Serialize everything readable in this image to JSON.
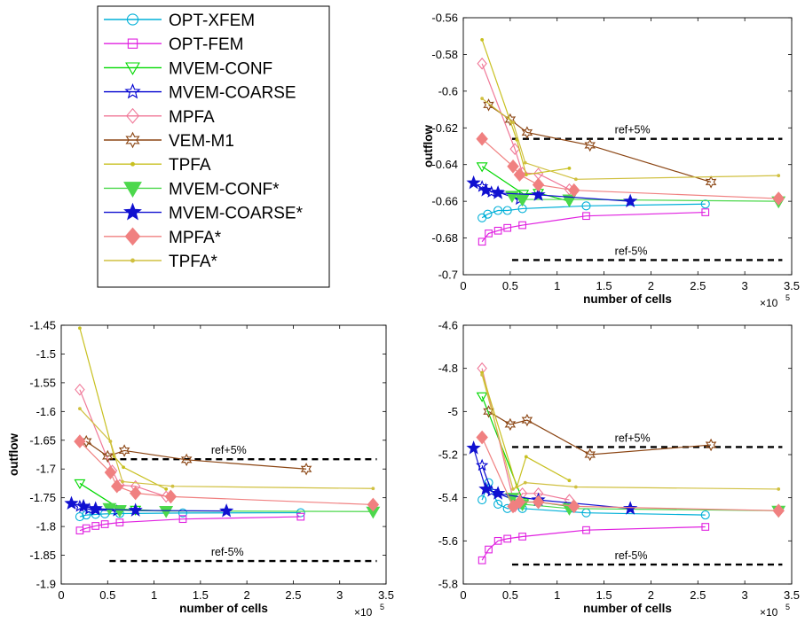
{
  "styles": {
    "OPT-XFEM": {
      "color": "#00b0d8",
      "marker": "circle",
      "dashed": false
    },
    "OPT-FEM": {
      "color": "#e020e0",
      "marker": "square",
      "dashed": false
    },
    "MVEM-CONF": {
      "color": "#00d800",
      "marker": "triangle-down",
      "dashed": false
    },
    "MVEM-COARSE": {
      "color": "#0000d0",
      "marker": "star5",
      "dashed": false
    },
    "MPFA": {
      "color": "#f07898",
      "marker": "diamond",
      "dashed": false
    },
    "VEM-M1": {
      "color": "#8b4513",
      "marker": "star6",
      "dashed": false
    },
    "TPFA": {
      "color": "#c8c020",
      "marker": "dot",
      "dashed": false
    },
    "MVEM-CONF*": {
      "color": "#4cd84c",
      "marker": "triangle-down-filled",
      "dashed": false
    },
    "MVEM-COARSE*": {
      "color": "#1010d0",
      "marker": "star5-filled",
      "dashed": false
    },
    "MPFA*": {
      "color": "#f08080",
      "marker": "diamond-filled",
      "dashed": false
    },
    "TPFA*": {
      "color": "#d0c040",
      "marker": "dot",
      "dashed": false
    }
  },
  "legend": {
    "placement": "top-left",
    "entries": [
      "OPT-XFEM",
      "OPT-FEM",
      "MVEM-CONF",
      "MVEM-COARSE",
      "MPFA",
      "VEM-M1",
      "TPFA",
      "MVEM-CONF*",
      "MVEM-COARSE*",
      "MPFA*",
      "TPFA*"
    ]
  },
  "chart_data": [
    {
      "type": "line",
      "xlabel": "number of cells",
      "ylabel": "outflow",
      "x_exponent_label": "×10",
      "x_exponent": "5",
      "xlim": [
        0,
        350000
      ],
      "ylim": [
        -0.7,
        -0.56
      ],
      "xticks": [
        0,
        50000,
        100000,
        150000,
        200000,
        250000,
        300000,
        350000
      ],
      "xticklabels": [
        "0",
        "0.5",
        "1",
        "1.5",
        "2",
        "2.5",
        "3",
        "3.5"
      ],
      "yticks": [
        -0.7,
        -0.68,
        -0.66,
        -0.64,
        -0.62,
        -0.6,
        -0.58,
        -0.56
      ],
      "yticklabels": [
        "-0.7",
        "-0.68",
        "-0.66",
        "-0.64",
        "-0.62",
        "-0.6",
        "-0.58",
        "-0.56"
      ],
      "reference_lines": [
        {
          "label": "ref+5%",
          "y": -0.626,
          "x": [
            52000,
            340000
          ]
        },
        {
          "label": "ref-5%",
          "y": -0.692,
          "x": [
            52000,
            340000
          ]
        }
      ],
      "series": [
        {
          "name": "OPT-XFEM",
          "x": [
            20000,
            26000,
            37000,
            47000,
            63000,
            131000,
            258000
          ],
          "y": [
            -0.669,
            -0.667,
            -0.665,
            -0.665,
            -0.664,
            -0.6625,
            -0.6615
          ]
        },
        {
          "name": "OPT-FEM",
          "x": [
            20000,
            27000,
            37000,
            47000,
            63000,
            131000,
            258000
          ],
          "y": [
            -0.682,
            -0.6775,
            -0.676,
            -0.6745,
            -0.673,
            -0.668,
            -0.666
          ]
        },
        {
          "name": "MVEM-CONF",
          "x": [
            20000,
            64000,
            80000,
            113000
          ],
          "y": [
            -0.641,
            -0.656,
            -0.6555,
            -0.66
          ]
        },
        {
          "name": "MVEM-COARSE",
          "x": [
            20000,
            30000,
            37000,
            60000
          ],
          "y": [
            -0.652,
            -0.655,
            -0.655,
            -0.659
          ]
        },
        {
          "name": "MPFA",
          "x": [
            20000,
            55000,
            63000,
            80000,
            113000
          ],
          "y": [
            -0.585,
            -0.6315,
            -0.6445,
            -0.645,
            -0.6535
          ]
        },
        {
          "name": "VEM-M1",
          "x": [
            27000,
            50000,
            68000,
            135000,
            264000
          ],
          "y": [
            -0.6075,
            -0.6155,
            -0.6225,
            -0.6295,
            -0.6495
          ]
        },
        {
          "name": "TPFA",
          "x": [
            20000,
            57000,
            67000,
            113000
          ],
          "y": [
            -0.572,
            -0.6265,
            -0.6455,
            -0.642
          ]
        },
        {
          "name": "MVEM-CONF*",
          "x": [
            52000,
            63000,
            113000,
            336000
          ],
          "y": [
            -0.657,
            -0.659,
            -0.659,
            -0.66
          ]
        },
        {
          "name": "MVEM-COARSE*",
          "x": [
            11000,
            24000,
            37000,
            80000,
            178000
          ],
          "y": [
            -0.65,
            -0.654,
            -0.6555,
            -0.6565,
            -0.66
          ]
        },
        {
          "name": "MPFA*",
          "x": [
            20000,
            53000,
            60000,
            80000,
            118000,
            336000
          ],
          "y": [
            -0.626,
            -0.641,
            -0.6455,
            -0.651,
            -0.654,
            -0.6585
          ]
        },
        {
          "name": "TPFA*",
          "x": [
            20000,
            53000,
            66000,
            120000,
            336000
          ],
          "y": [
            -0.604,
            -0.617,
            -0.639,
            -0.648,
            -0.646
          ]
        }
      ]
    },
    {
      "type": "line",
      "xlabel": "number of cells",
      "ylabel": "outflow",
      "x_exponent_label": "×10",
      "x_exponent": "5",
      "xlim": [
        0,
        350000
      ],
      "ylim": [
        -1.9,
        -1.45
      ],
      "xticks": [
        0,
        50000,
        100000,
        150000,
        200000,
        250000,
        300000,
        350000
      ],
      "xticklabels": [
        "0",
        "0.5",
        "1",
        "1.5",
        "2",
        "2.5",
        "3",
        "3.5"
      ],
      "yticks": [
        -1.9,
        -1.85,
        -1.8,
        -1.75,
        -1.7,
        -1.65,
        -1.6,
        -1.55,
        -1.5,
        -1.45
      ],
      "yticklabels": [
        "-1.9",
        "-1.85",
        "-1.8",
        "-1.75",
        "-1.7",
        "-1.65",
        "-1.6",
        "-1.55",
        "-1.5",
        "-1.45"
      ],
      "reference_lines": [
        {
          "label": "ref+5%",
          "y": -1.683,
          "x": [
            52000,
            340000
          ]
        },
        {
          "label": "ref-5%",
          "y": -1.86,
          "x": [
            52000,
            340000
          ]
        }
      ],
      "series": [
        {
          "name": "OPT-XFEM",
          "x": [
            20000,
            27000,
            37000,
            47000,
            63000,
            131000,
            258000
          ],
          "y": [
            -1.783,
            -1.78,
            -1.779,
            -1.778,
            -1.7775,
            -1.7765,
            -1.776
          ]
        },
        {
          "name": "OPT-FEM",
          "x": [
            20000,
            27000,
            37000,
            47000,
            63000,
            131000,
            258000
          ],
          "y": [
            -1.807,
            -1.803,
            -1.799,
            -1.796,
            -1.793,
            -1.787,
            -1.783
          ]
        },
        {
          "name": "MVEM-CONF",
          "x": [
            20000,
            64000,
            80000,
            113000
          ],
          "y": [
            -1.725,
            -1.77,
            -1.771,
            -1.773
          ]
        },
        {
          "name": "MVEM-COARSE",
          "x": [
            20000,
            30000,
            37000,
            60000
          ],
          "y": [
            -1.765,
            -1.77,
            -1.771,
            -1.773
          ]
        },
        {
          "name": "MPFA",
          "x": [
            20000,
            55000,
            63000,
            80000,
            113000
          ],
          "y": [
            -1.562,
            -1.703,
            -1.728,
            -1.73,
            -1.748
          ]
        },
        {
          "name": "VEM-M1",
          "x": [
            27000,
            50000,
            68000,
            135000,
            264000
          ],
          "y": [
            -1.652,
            -1.678,
            -1.668,
            -1.684,
            -1.7
          ]
        },
        {
          "name": "TPFA",
          "x": [
            20000,
            57000,
            67000,
            113000
          ],
          "y": [
            -1.455,
            -1.678,
            -1.697,
            -1.735
          ]
        },
        {
          "name": "MVEM-CONF*",
          "x": [
            52000,
            63000,
            113000,
            336000
          ],
          "y": [
            -1.768,
            -1.772,
            -1.773,
            -1.774
          ]
        },
        {
          "name": "MVEM-COARSE*",
          "x": [
            11000,
            24000,
            37000,
            80000,
            178000
          ],
          "y": [
            -1.76,
            -1.765,
            -1.769,
            -1.772,
            -1.773
          ]
        },
        {
          "name": "MPFA*",
          "x": [
            20000,
            53000,
            60000,
            80000,
            118000,
            336000
          ],
          "y": [
            -1.652,
            -1.706,
            -1.73,
            -1.742,
            -1.748,
            -1.762
          ]
        },
        {
          "name": "TPFA*",
          "x": [
            20000,
            53000,
            66000,
            120000,
            336000
          ],
          "y": [
            -1.595,
            -1.652,
            -1.722,
            -1.73,
            -1.734
          ]
        }
      ]
    },
    {
      "type": "line",
      "xlabel": "number of cells",
      "ylabel": "",
      "x_exponent_label": "×10",
      "x_exponent": "5",
      "xlim": [
        0,
        350000
      ],
      "ylim": [
        -5.8,
        -4.6
      ],
      "xticks": [
        0,
        50000,
        100000,
        150000,
        200000,
        250000,
        300000,
        350000
      ],
      "xticklabels": [
        "0",
        "0.5",
        "1",
        "1.5",
        "2",
        "2.5",
        "3",
        "3.5"
      ],
      "yticks": [
        -5.8,
        -5.6,
        -5.4,
        -5.2,
        -5.0,
        -4.8,
        -4.6
      ],
      "yticklabels": [
        "-5.8",
        "-5.6",
        "-5.4",
        "-5.2",
        "-5",
        "-4.8",
        "-4.6"
      ],
      "reference_lines": [
        {
          "label": "ref+5%",
          "y": -5.165,
          "x": [
            52000,
            340000
          ]
        },
        {
          "label": "ref-5%",
          "y": -5.71,
          "x": [
            52000,
            340000
          ]
        }
      ],
      "series": [
        {
          "name": "OPT-XFEM",
          "x": [
            20000,
            27000,
            37000,
            47000,
            63000,
            131000,
            258000
          ],
          "y": [
            -5.41,
            -5.33,
            -5.43,
            -5.45,
            -5.45,
            -5.47,
            -5.48
          ]
        },
        {
          "name": "OPT-FEM",
          "x": [
            20000,
            27000,
            37000,
            47000,
            63000,
            131000,
            258000
          ],
          "y": [
            -5.69,
            -5.64,
            -5.6,
            -5.59,
            -5.58,
            -5.55,
            -5.535
          ]
        },
        {
          "name": "MVEM-CONF",
          "x": [
            20000,
            64000,
            80000,
            113000
          ],
          "y": [
            -4.93,
            -5.42,
            -5.42,
            -5.44
          ]
        },
        {
          "name": "MVEM-COARSE",
          "x": [
            20000,
            30000,
            37000,
            60000
          ],
          "y": [
            -5.25,
            -5.37,
            -5.38,
            -5.42
          ]
        },
        {
          "name": "MPFA",
          "x": [
            20000,
            55000,
            63000,
            80000,
            113000
          ],
          "y": [
            -4.8,
            -5.44,
            -5.38,
            -5.38,
            -5.41
          ]
        },
        {
          "name": "VEM-M1",
          "x": [
            27000,
            50000,
            68000,
            135000,
            264000
          ],
          "y": [
            -5.0,
            -5.06,
            -5.04,
            -5.2,
            -5.155
          ]
        },
        {
          "name": "TPFA",
          "x": [
            20000,
            57000,
            67000,
            113000
          ],
          "y": [
            -4.82,
            -5.35,
            -5.21,
            -5.32
          ]
        },
        {
          "name": "MVEM-CONF*",
          "x": [
            52000,
            63000,
            113000,
            336000
          ],
          "y": [
            -5.4,
            -5.43,
            -5.45,
            -5.46
          ]
        },
        {
          "name": "MVEM-COARSE*",
          "x": [
            11000,
            24000,
            37000,
            80000,
            178000
          ],
          "y": [
            -5.17,
            -5.36,
            -5.38,
            -5.41,
            -5.45
          ]
        },
        {
          "name": "MPFA*",
          "x": [
            20000,
            53000,
            60000,
            80000,
            118000,
            336000
          ],
          "y": [
            -5.12,
            -5.44,
            -5.42,
            -5.42,
            -5.44,
            -5.46
          ]
        },
        {
          "name": "TPFA*",
          "x": [
            20000,
            53000,
            66000,
            120000,
            336000
          ],
          "y": [
            -4.83,
            -5.36,
            -5.33,
            -5.35,
            -5.36
          ]
        }
      ]
    }
  ]
}
